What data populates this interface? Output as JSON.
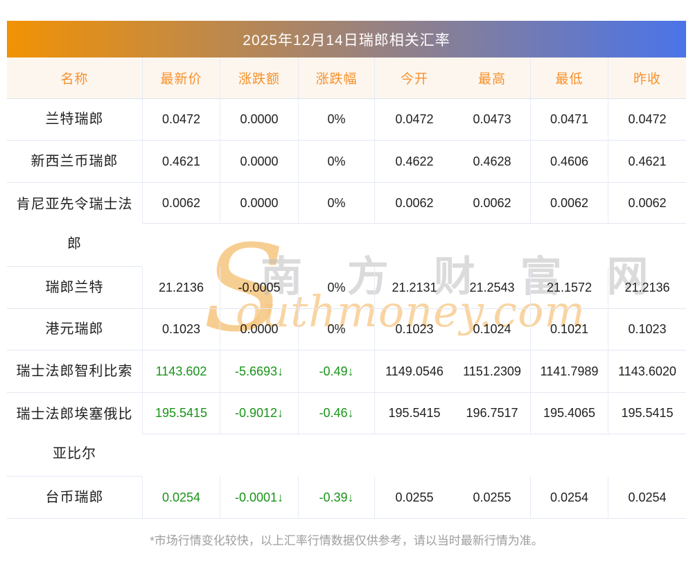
{
  "title": "2025年12月14日瑞郎相关汇率",
  "colors": {
    "band_gradient_left": "#f29204",
    "band_gradient_right": "#4b74e9",
    "header_bg": "#fdf6ee",
    "header_text": "#f6912c",
    "body_text": "#1f1f1f",
    "down_green": "#189418",
    "border": "#e3e8f2",
    "note_text": "#9e9e9e"
  },
  "table": {
    "headers": [
      "名称",
      "最新价",
      "涨跌额",
      "涨跌幅",
      "今开",
      "最高",
      "最低",
      "昨收"
    ],
    "rows": [
      {
        "name": "兰特瑞郎",
        "latest": "0.0472",
        "change": "0.0000",
        "change_pct": "0%",
        "open": "0.0472",
        "high": "0.0473",
        "low": "0.0471",
        "prev_close": "0.0472",
        "trend": "flat"
      },
      {
        "name": "新西兰币瑞郎",
        "latest": "0.4621",
        "change": "0.0000",
        "change_pct": "0%",
        "open": "0.4622",
        "high": "0.4628",
        "low": "0.4606",
        "prev_close": "0.4621",
        "trend": "flat"
      },
      {
        "name": "肯尼亚先令瑞士法\n郎",
        "latest": "0.0062",
        "change": "0.0000",
        "change_pct": "0%",
        "open": "0.0062",
        "high": "0.0062",
        "low": "0.0062",
        "prev_close": "0.0062",
        "trend": "flat"
      },
      {
        "name": "瑞郎兰特",
        "latest": "21.2136",
        "change": "-0.0005",
        "change_pct": "0%",
        "open": "21.2131",
        "high": "21.2543",
        "low": "21.1572",
        "prev_close": "21.2136",
        "trend": "flat"
      },
      {
        "name": "港元瑞郎",
        "latest": "0.1023",
        "change": "0.0000",
        "change_pct": "0%",
        "open": "0.1023",
        "high": "0.1024",
        "low": "0.1021",
        "prev_close": "0.1023",
        "trend": "flat"
      },
      {
        "name": "瑞士法郎智利比索",
        "latest": "1143.602",
        "change": "-5.6693↓",
        "change_pct": "-0.49↓",
        "open": "1149.0546",
        "high": "1151.2309",
        "low": "1141.7989",
        "prev_close": "1143.6020",
        "trend": "down"
      },
      {
        "name": "瑞士法郎埃塞俄比\n亚比尔",
        "latest": "195.5415",
        "change": "-0.9012↓",
        "change_pct": "-0.46↓",
        "open": "195.5415",
        "high": "196.7517",
        "low": "195.4065",
        "prev_close": "195.5415",
        "trend": "down"
      },
      {
        "name": "台币瑞郎",
        "latest": "0.0254",
        "change": "-0.0001↓",
        "change_pct": "-0.39↓",
        "open": "0.0255",
        "high": "0.0255",
        "low": "0.0254",
        "prev_close": "0.0254",
        "trend": "down"
      }
    ]
  },
  "watermark": {
    "s": "S",
    "cn": "南 方 财 富 网",
    "en": "outhmoney.com"
  },
  "footnote": "*市场行情变化较快，以上汇率行情数据仅供参考，请以当时最新行情为准。"
}
